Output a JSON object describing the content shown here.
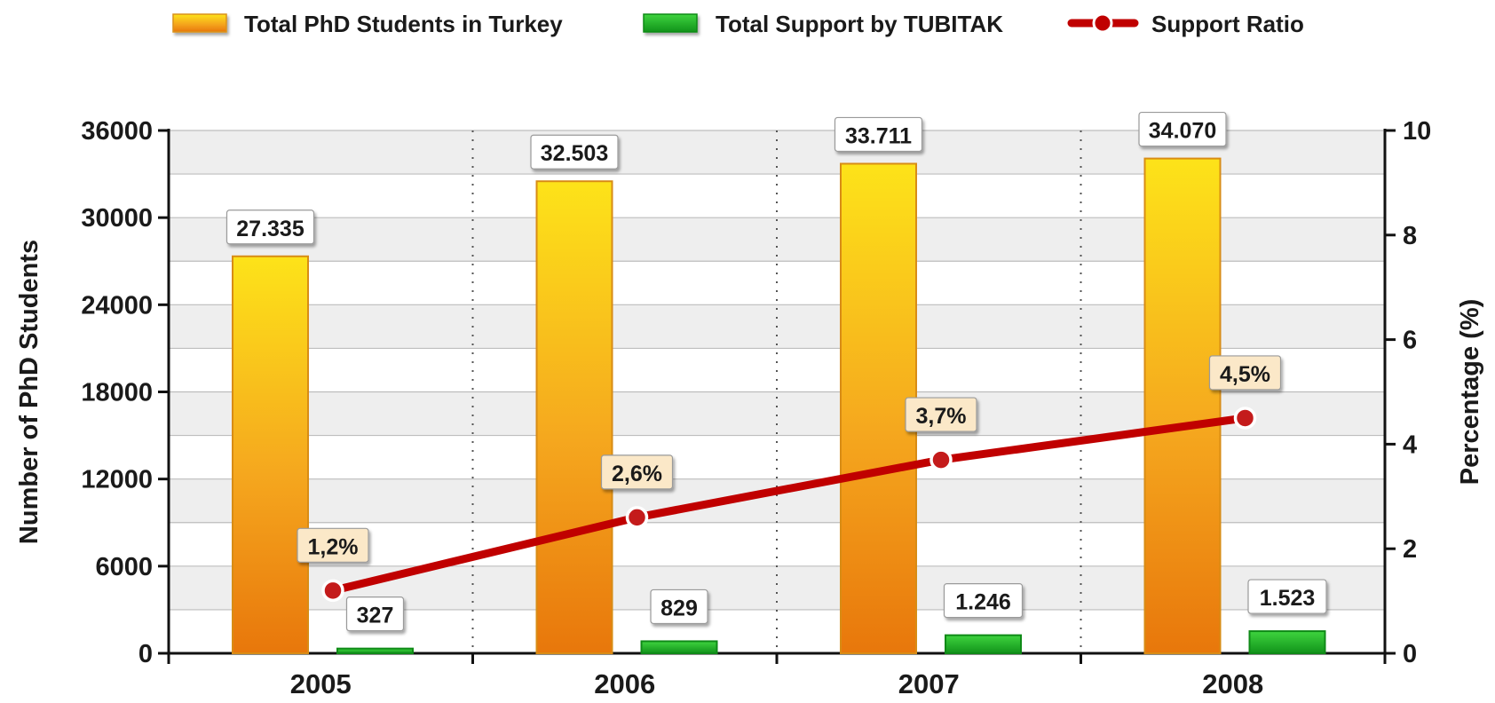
{
  "chart_data": {
    "type": "bar",
    "categories": [
      "2005",
      "2006",
      "2007",
      "2008"
    ],
    "series": [
      {
        "name": "Total PhD Students in Turkey",
        "values": [
          27335,
          32503,
          33711,
          34070
        ],
        "labels": [
          "27.335",
          "32.503",
          "33.711",
          "34.070"
        ],
        "axis": "left",
        "kind": "bar"
      },
      {
        "name": "Total Support by TUBITAK",
        "values": [
          327,
          829,
          1246,
          1523
        ],
        "labels": [
          "327",
          "829",
          "1.246",
          "1.523"
        ],
        "axis": "left",
        "kind": "bar"
      },
      {
        "name": "Support Ratio",
        "values": [
          1.2,
          2.6,
          3.7,
          4.5
        ],
        "labels": [
          "1,2%",
          "2,6%",
          "3,7%",
          "4,5%"
        ],
        "axis": "right",
        "kind": "line"
      }
    ],
    "ylabel": "Number of PhD Students",
    "y2label": "Percentage (%)",
    "ylim": [
      0,
      36000
    ],
    "y2lim": [
      0,
      10
    ],
    "yticks": [
      "0",
      "6000",
      "12000",
      "18000",
      "24000",
      "30000",
      "36000"
    ],
    "y2ticks": [
      "0",
      "2",
      "4",
      "6",
      "8",
      "10"
    ],
    "grid": true,
    "legend_position": "top",
    "colors": {
      "phd": "#f0a21a",
      "support": "#22b42a",
      "ratio": "#c00000"
    }
  }
}
